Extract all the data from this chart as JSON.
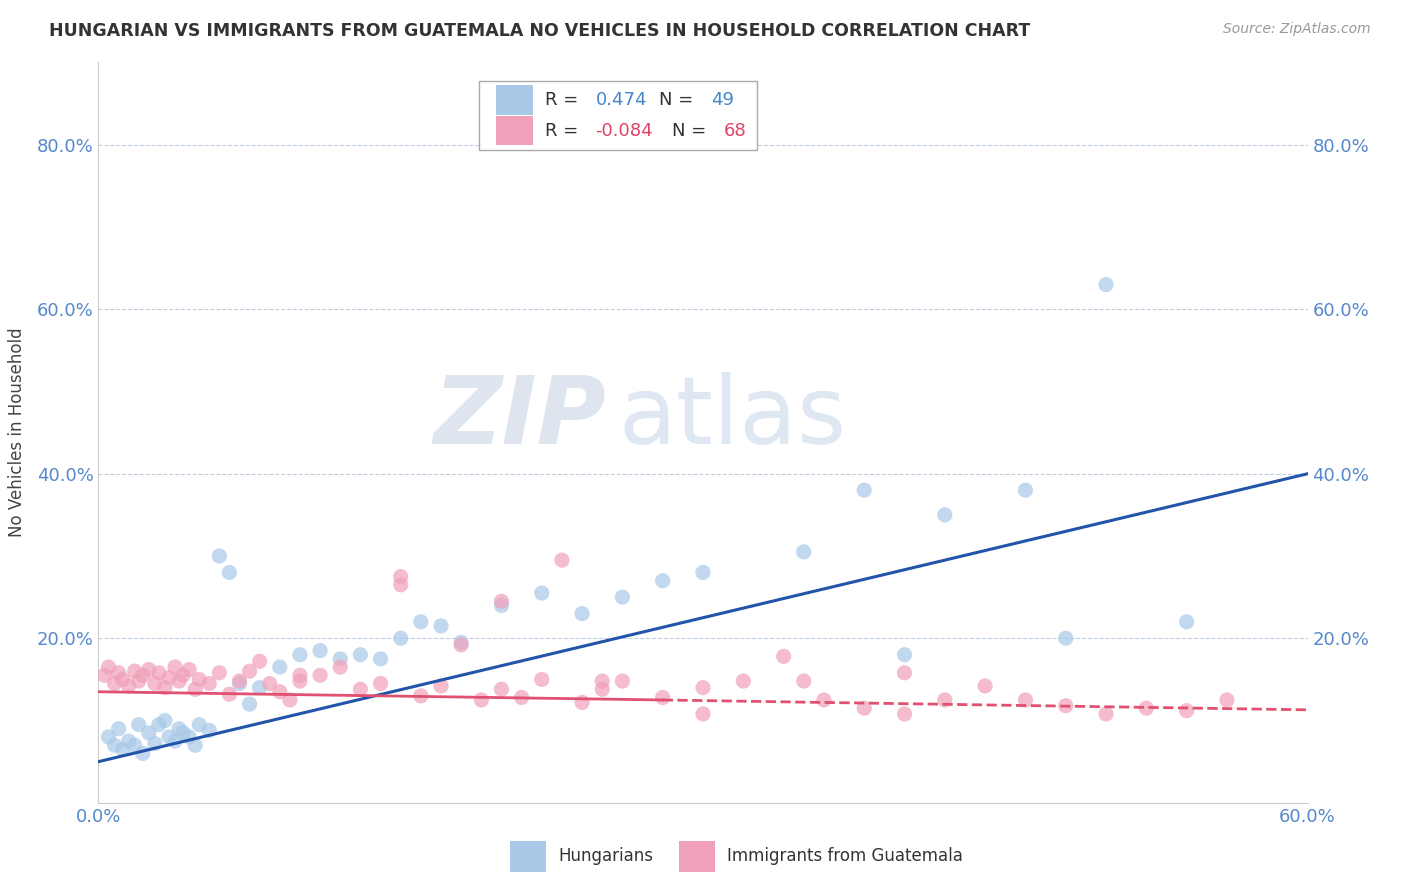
{
  "title": "HUNGARIAN VS IMMIGRANTS FROM GUATEMALA NO VEHICLES IN HOUSEHOLD CORRELATION CHART",
  "source": "Source: ZipAtlas.com",
  "ylabel": "No Vehicles in Household",
  "xlim": [
    0.0,
    0.6
  ],
  "ylim": [
    0.0,
    0.9
  ],
  "yticks": [
    0.0,
    0.2,
    0.4,
    0.6,
    0.8
  ],
  "xtick_labels": [
    "0.0%",
    "60.0%"
  ],
  "ytick_labels": [
    "",
    "20.0%",
    "40.0%",
    "60.0%",
    "80.0%"
  ],
  "color_hungarian": "#a8c8e8",
  "color_guatemala": "#f0a0b8",
  "line_color_hungarian": "#2255aa",
  "line_color_guatemala": "#e05070",
  "hun_line_x0": 0.0,
  "hun_line_y0": 0.05,
  "hun_line_x1": 0.6,
  "hun_line_y1": 0.4,
  "gua_line_solid_x0": 0.0,
  "gua_line_solid_y0": 0.135,
  "gua_line_solid_x1": 0.28,
  "gua_line_solid_y1": 0.125,
  "gua_line_dash_x0": 0.28,
  "gua_line_dash_y0": 0.125,
  "gua_line_dash_x1": 0.6,
  "gua_line_dash_y1": 0.113,
  "hungarian_x": [
    0.005,
    0.008,
    0.01,
    0.012,
    0.015,
    0.018,
    0.02,
    0.022,
    0.025,
    0.028,
    0.03,
    0.033,
    0.035,
    0.038,
    0.04,
    0.042,
    0.045,
    0.048,
    0.05,
    0.055,
    0.06,
    0.065,
    0.07,
    0.075,
    0.08,
    0.09,
    0.1,
    0.11,
    0.12,
    0.13,
    0.14,
    0.15,
    0.16,
    0.17,
    0.18,
    0.2,
    0.22,
    0.24,
    0.26,
    0.28,
    0.3,
    0.35,
    0.38,
    0.4,
    0.42,
    0.46,
    0.48,
    0.5,
    0.54
  ],
  "hungarian_y": [
    0.08,
    0.07,
    0.09,
    0.065,
    0.075,
    0.07,
    0.095,
    0.06,
    0.085,
    0.072,
    0.095,
    0.1,
    0.08,
    0.075,
    0.09,
    0.085,
    0.08,
    0.07,
    0.095,
    0.088,
    0.3,
    0.28,
    0.145,
    0.12,
    0.14,
    0.165,
    0.18,
    0.185,
    0.175,
    0.18,
    0.175,
    0.2,
    0.22,
    0.215,
    0.195,
    0.24,
    0.255,
    0.23,
    0.25,
    0.27,
    0.28,
    0.305,
    0.38,
    0.18,
    0.35,
    0.38,
    0.2,
    0.63,
    0.22
  ],
  "guatemala_x": [
    0.003,
    0.005,
    0.008,
    0.01,
    0.012,
    0.015,
    0.018,
    0.02,
    0.022,
    0.025,
    0.028,
    0.03,
    0.033,
    0.035,
    0.038,
    0.04,
    0.042,
    0.045,
    0.048,
    0.05,
    0.055,
    0.06,
    0.065,
    0.07,
    0.075,
    0.08,
    0.085,
    0.09,
    0.095,
    0.1,
    0.11,
    0.12,
    0.13,
    0.14,
    0.15,
    0.16,
    0.17,
    0.18,
    0.19,
    0.2,
    0.21,
    0.22,
    0.23,
    0.24,
    0.25,
    0.26,
    0.28,
    0.3,
    0.32,
    0.34,
    0.36,
    0.38,
    0.4,
    0.42,
    0.44,
    0.46,
    0.48,
    0.5,
    0.52,
    0.54,
    0.56,
    0.1,
    0.15,
    0.2,
    0.25,
    0.3,
    0.35,
    0.4
  ],
  "guatemala_y": [
    0.155,
    0.165,
    0.145,
    0.158,
    0.15,
    0.142,
    0.16,
    0.148,
    0.155,
    0.162,
    0.145,
    0.158,
    0.14,
    0.152,
    0.165,
    0.148,
    0.155,
    0.162,
    0.138,
    0.15,
    0.145,
    0.158,
    0.132,
    0.148,
    0.16,
    0.172,
    0.145,
    0.135,
    0.125,
    0.148,
    0.155,
    0.165,
    0.138,
    0.145,
    0.265,
    0.13,
    0.142,
    0.192,
    0.125,
    0.138,
    0.128,
    0.15,
    0.295,
    0.122,
    0.138,
    0.148,
    0.128,
    0.108,
    0.148,
    0.178,
    0.125,
    0.115,
    0.108,
    0.125,
    0.142,
    0.125,
    0.118,
    0.108,
    0.115,
    0.112,
    0.125,
    0.155,
    0.275,
    0.245,
    0.148,
    0.14,
    0.148,
    0.158
  ]
}
